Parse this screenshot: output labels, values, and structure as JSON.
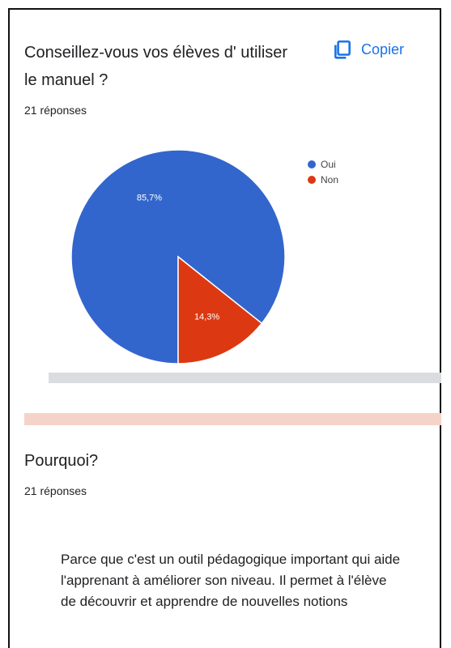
{
  "question1": {
    "title": "Conseillez-vous vos élèves d' utiliser le manuel ?",
    "copy_label": "Copier",
    "copy_icon": "copy-icon",
    "responses": "21 réponses"
  },
  "chart_data": {
    "type": "pie",
    "legend_position": "right",
    "slices": [
      {
        "name": "Oui",
        "value": 85.7,
        "label": "85,7%",
        "color": "#3366cc"
      },
      {
        "name": "Non",
        "value": 14.3,
        "label": "14,3%",
        "color": "#dc3912"
      }
    ]
  },
  "question2": {
    "title": "Pourquoi?",
    "responses": "21 réponses",
    "answers": [
      "Parce que c'est un outil pédagogique important qui aide l'apprenant à améliorer son niveau. Il permet à l'élève de découvrir et apprendre de nouvelles notions"
    ]
  }
}
